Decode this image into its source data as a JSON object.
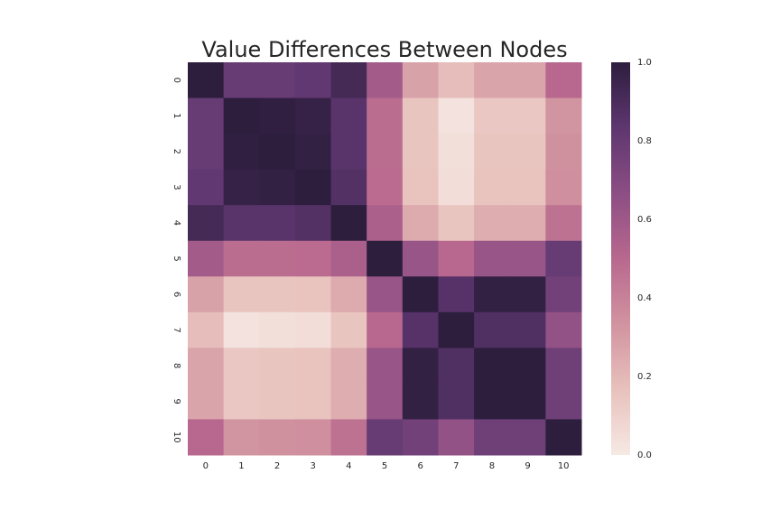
{
  "chart_data": {
    "type": "heatmap",
    "title": "Value Differences Between Nodes",
    "xlabel": "",
    "ylabel": "",
    "x_labels": [
      "0",
      "1",
      "2",
      "3",
      "4",
      "5",
      "6",
      "7",
      "8",
      "9",
      "10"
    ],
    "y_labels": [
      "0",
      "1",
      "2",
      "3",
      "4",
      "5",
      "6",
      "7",
      "8",
      "9",
      "10"
    ],
    "value_range": [
      0.0,
      1.0
    ],
    "colorbar": {
      "ticks": [
        0.0,
        0.2,
        0.4,
        0.6,
        0.8,
        1.0
      ],
      "tick_labels": [
        "0.0",
        "0.2",
        "0.4",
        "0.6",
        "0.8",
        "1.0"
      ],
      "colormap_stops": [
        "#f6e9e4",
        "#e8c1bc",
        "#d193a0",
        "#b8688e",
        "#8c4e84",
        "#5e3670",
        "#2d1e3e"
      ]
    },
    "grid": false,
    "legend": "colorbar-right",
    "matrix": [
      [
        1.0,
        0.8,
        0.8,
        0.82,
        0.92,
        0.58,
        0.28,
        0.18,
        0.27,
        0.27,
        0.5
      ],
      [
        0.8,
        1.0,
        0.99,
        0.97,
        0.85,
        0.48,
        0.15,
        0.03,
        0.14,
        0.14,
        0.33
      ],
      [
        0.8,
        0.99,
        1.0,
        0.98,
        0.85,
        0.48,
        0.15,
        0.04,
        0.15,
        0.15,
        0.34
      ],
      [
        0.82,
        0.97,
        0.98,
        1.0,
        0.87,
        0.49,
        0.16,
        0.05,
        0.16,
        0.16,
        0.35
      ],
      [
        0.92,
        0.85,
        0.85,
        0.87,
        1.0,
        0.55,
        0.25,
        0.15,
        0.24,
        0.24,
        0.46
      ],
      [
        0.58,
        0.48,
        0.48,
        0.49,
        0.55,
        1.0,
        0.62,
        0.5,
        0.62,
        0.62,
        0.8
      ],
      [
        0.28,
        0.15,
        0.15,
        0.16,
        0.25,
        0.62,
        1.0,
        0.86,
        0.98,
        0.98,
        0.76
      ],
      [
        0.18,
        0.03,
        0.04,
        0.05,
        0.15,
        0.5,
        0.86,
        1.0,
        0.88,
        0.88,
        0.64
      ],
      [
        0.27,
        0.14,
        0.15,
        0.16,
        0.24,
        0.62,
        0.98,
        0.88,
        1.0,
        1.0,
        0.77
      ],
      [
        0.27,
        0.14,
        0.15,
        0.16,
        0.24,
        0.62,
        0.98,
        0.88,
        1.0,
        1.0,
        0.77
      ],
      [
        0.5,
        0.33,
        0.34,
        0.35,
        0.46,
        0.8,
        0.76,
        0.64,
        0.77,
        0.77,
        1.0
      ]
    ]
  }
}
